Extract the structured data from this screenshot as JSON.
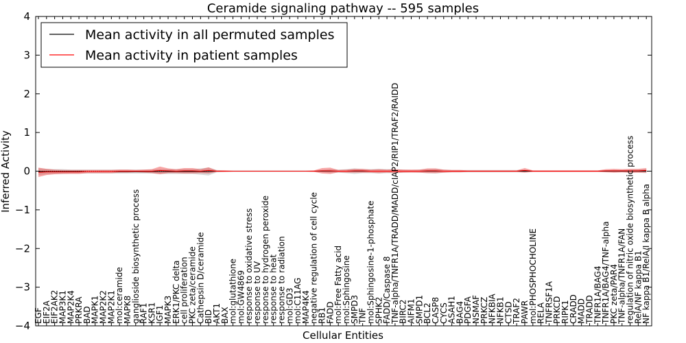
{
  "chart_data": {
    "type": "line",
    "title": "Ceramide signaling pathway -- 595 samples",
    "xlabel": "Cellular Entities",
    "ylabel": "Inferred Activity",
    "ylim": [
      -4,
      4
    ],
    "yticks": [
      -4,
      -3,
      -2,
      -1,
      0,
      1,
      2,
      3,
      4
    ],
    "ytick_labels": [
      "−4",
      "−3",
      "−2",
      "−1",
      "0",
      "1",
      "2",
      "3",
      "4"
    ],
    "legend_position": "top-left",
    "categories": [
      "EGF",
      "EIF2A",
      "EIF2AK2",
      "MAP3K1",
      "MAP2K4",
      "PRKRA",
      "BAD",
      "MAPK1",
      "MAP2K2",
      "MAP2K1",
      "mol:ceramide",
      "MAPK8",
      "ganglioside biosynthetic process",
      "RAF1",
      "KSR1",
      "IGF1",
      "MAPK3",
      "ERK1/PKC delta",
      "cell proliferation",
      "PKC zeta/ceramide",
      "Cathepsin D/ceramide",
      "BID",
      "AKT1",
      "BAX",
      "mol:glutathione",
      "mol:GW4869",
      "response to oxidative stress",
      "response to UV",
      "response to hydrogen peroxide",
      "response to heat",
      "response to radiation",
      "mol:GD3",
      "mol:C11AG",
      "MAP4K4",
      "negative regulation of cell cycle",
      "RB1",
      "FADD",
      "mol:Free Fatty acid",
      "mol:Sphingosine",
      "SMPD3",
      "TNF",
      "mol:Sphingosine-1-phosphate",
      "SPHK2",
      "FADD/Caspase 8",
      "TNF-alpha/TNFR1A/TRADD/MADD/cIAP2/RIP1/TRAF2/RAIDD",
      "BIRC2",
      "AIFM1",
      "SMPD1",
      "BCL2",
      "CASP8",
      "CYCS",
      "ASAH1",
      "BAG4",
      "PDGFA",
      "NSMAF",
      "PRKCZ",
      "NFKBIA",
      "NFKB1",
      "CTSD",
      "TRAF2",
      "PAWR",
      "mol:PHOSPHOCHOLINE",
      "RELA",
      "TNFRSF1A",
      "PRKCD",
      "RIPK1",
      "CRADD",
      "MADD",
      "TRADD",
      "TNFR1A/BAG4",
      "TNFR1A/BAG4/TNF-alpha",
      "PKC zeta/PAR4",
      "TNF-alpha/TNFR1A/FAN",
      "regulation of nitric oxide biosynthetic process",
      "RelA/NF kappa B1",
      "NF kappa B1/RelA/I kappa B alpha"
    ],
    "series": [
      {
        "name": "Mean activity in all permuted samples",
        "color": "#000000",
        "values": [
          -0.01,
          -0.01,
          -0.01,
          -0.01,
          -0.01,
          -0.01,
          -0.01,
          -0.01,
          -0.01,
          -0.01,
          -0.01,
          -0.01,
          -0.01,
          -0.01,
          -0.01,
          -0.01,
          -0.01,
          -0.01,
          -0.01,
          -0.01,
          -0.01,
          -0.01,
          0,
          0,
          0,
          0,
          0,
          0,
          0,
          0,
          0,
          0,
          0,
          0,
          0,
          0,
          0,
          0,
          0,
          0,
          0,
          0,
          0,
          0,
          0,
          0,
          0,
          0,
          0,
          0,
          0,
          0,
          0,
          0,
          0,
          0,
          0,
          0,
          0,
          0,
          0,
          0,
          0,
          0,
          0,
          0,
          0,
          0,
          0,
          0,
          0,
          0,
          0,
          0,
          0,
          0
        ],
        "band": [
          0.09,
          0.07,
          0.06,
          0.06,
          0.05,
          0.05,
          0.05,
          0.05,
          0.05,
          0.05,
          0.05,
          0.05,
          0.05,
          0.05,
          0.05,
          0.06,
          0.06,
          0.06,
          0.06,
          0.06,
          0.08,
          0.1,
          0.03,
          0.02,
          0.02,
          0.02,
          0.02,
          0.02,
          0.02,
          0.02,
          0.02,
          0.02,
          0.02,
          0.02,
          0.02,
          0.03,
          0.05,
          0.04,
          0.05,
          0.07,
          0.05,
          0.05,
          0.06,
          0.05,
          0.05,
          0.04,
          0.03,
          0.04,
          0.05,
          0.06,
          0.04,
          0.03,
          0.03,
          0.03,
          0.03,
          0.03,
          0.03,
          0.03,
          0.03,
          0.03,
          0.03,
          0.02,
          0.02,
          0.02,
          0.02,
          0.02,
          0.02,
          0.02,
          0.02,
          0.02,
          0.02,
          0.03,
          0.03,
          0.04,
          0.04,
          0.05
        ]
      },
      {
        "name": "Mean activity in patient samples",
        "color": "#ff0000",
        "values": [
          -0.03,
          -0.02,
          -0.02,
          -0.02,
          -0.02,
          -0.02,
          -0.01,
          -0.01,
          -0.01,
          -0.01,
          0,
          0,
          0,
          0,
          0,
          0.02,
          0.01,
          0,
          0.01,
          0.01,
          0,
          0.02,
          0,
          0,
          0,
          0,
          0,
          0,
          0,
          0,
          0,
          0,
          0,
          0,
          0,
          0.01,
          0.01,
          0,
          0,
          0.01,
          0.01,
          0,
          0,
          0,
          0,
          0,
          0,
          0,
          0.01,
          0.01,
          0,
          0,
          0,
          0,
          0,
          0,
          0,
          0,
          0,
          0,
          0.02,
          0,
          0,
          0,
          0,
          0,
          0,
          0,
          0,
          0,
          0.01,
          0.01,
          0.01,
          0.01,
          0.01,
          0.02
        ],
        "band": [
          0.12,
          0.08,
          0.06,
          0.05,
          0.05,
          0.05,
          0.04,
          0.04,
          0.04,
          0.04,
          0.04,
          0.04,
          0.03,
          0.04,
          0.05,
          0.1,
          0.06,
          0.05,
          0.07,
          0.07,
          0.05,
          0.08,
          0.02,
          0.02,
          0.01,
          0.01,
          0.01,
          0.01,
          0.01,
          0.01,
          0.01,
          0.01,
          0.01,
          0.01,
          0.02,
          0.07,
          0.08,
          0.03,
          0.04,
          0.05,
          0.05,
          0.04,
          0.05,
          0.04,
          0.05,
          0.04,
          0.04,
          0.04,
          0.06,
          0.06,
          0.04,
          0.03,
          0.03,
          0.02,
          0.02,
          0.02,
          0.02,
          0.02,
          0.02,
          0.02,
          0.06,
          0.02,
          0.02,
          0.02,
          0.02,
          0.02,
          0.02,
          0.02,
          0.02,
          0.02,
          0.04,
          0.05,
          0.04,
          0.05,
          0.05,
          0.06
        ]
      }
    ]
  }
}
